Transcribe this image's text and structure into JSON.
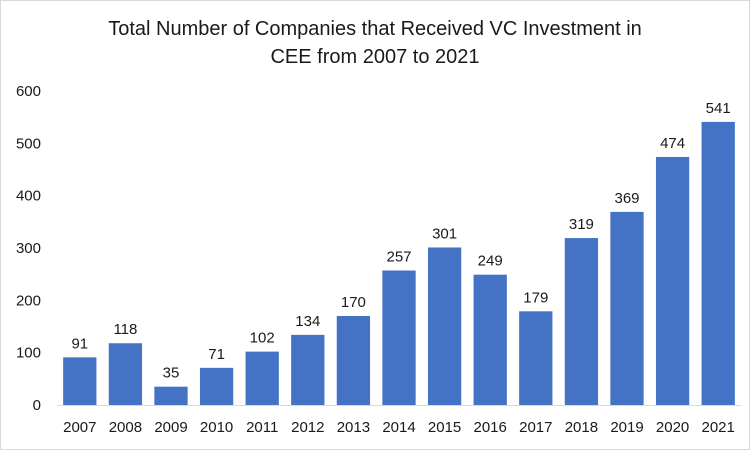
{
  "chart_data": {
    "type": "bar",
    "title_lines": [
      "Total Number of Companies that Received VC Investment in",
      "CEE from 2007 to 2021"
    ],
    "categories": [
      "2007",
      "2008",
      "2009",
      "2010",
      "2011",
      "2012",
      "2013",
      "2014",
      "2015",
      "2016",
      "2017",
      "2018",
      "2019",
      "2020",
      "2021"
    ],
    "values": [
      91,
      118,
      35,
      71,
      102,
      134,
      170,
      257,
      301,
      249,
      179,
      319,
      369,
      474,
      541
    ],
    "data_labels": [
      "91",
      "118",
      "35",
      "71",
      "102",
      "134",
      "170",
      "257",
      "301",
      "249",
      "179",
      "319",
      "369",
      "474",
      "541"
    ],
    "xlabel": "",
    "ylabel": "",
    "ylim": [
      0,
      600
    ],
    "yticks": [
      "0",
      "100",
      "200",
      "300",
      "400",
      "500",
      "600"
    ],
    "grid": false,
    "legend": "none",
    "bar_color": "#4472c4"
  }
}
